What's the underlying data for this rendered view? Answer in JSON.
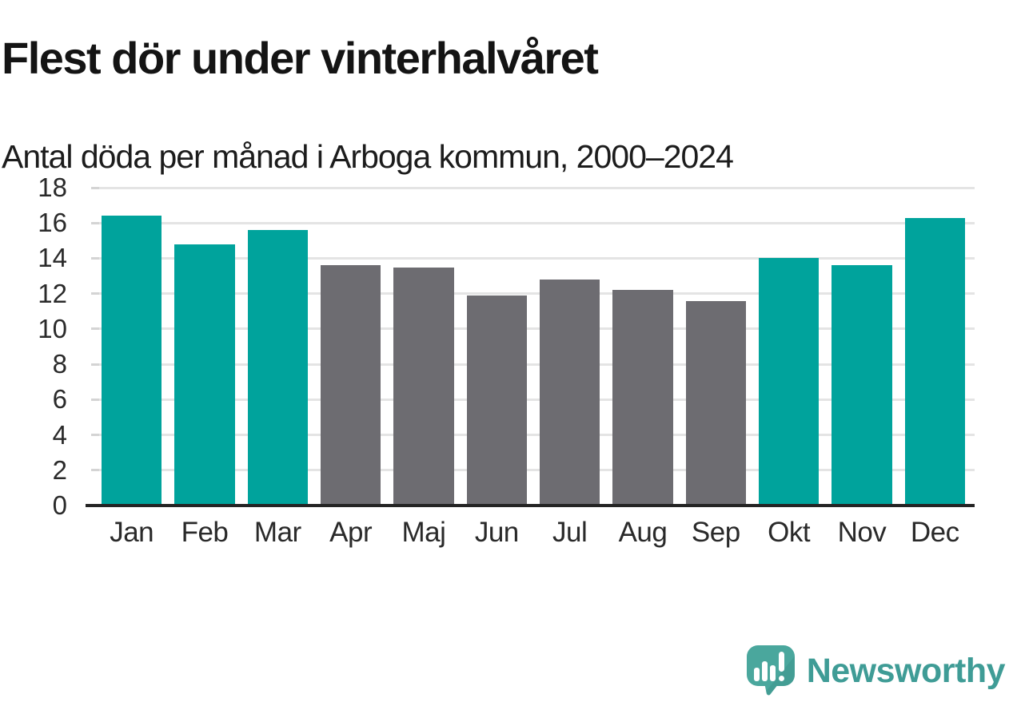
{
  "header": {
    "title": "Flest dör under vinterhalvåret",
    "subtitle": "Antal döda per månad i Arboga kommun, 2000–2024"
  },
  "chart_data": {
    "type": "bar",
    "title": "Flest dör under vinterhalvåret",
    "subtitle": "Antal döda per månad i Arboga kommun, 2000–2024",
    "categories": [
      "Jan",
      "Feb",
      "Mar",
      "Apr",
      "Maj",
      "Jun",
      "Jul",
      "Aug",
      "Sep",
      "Okt",
      "Nov",
      "Dec"
    ],
    "values": [
      16.4,
      14.8,
      15.6,
      13.6,
      13.5,
      11.9,
      12.8,
      12.2,
      11.6,
      14.0,
      13.6,
      16.3
    ],
    "series": [
      {
        "name": "Antal döda per månad",
        "values": [
          16.4,
          14.8,
          15.6,
          13.6,
          13.5,
          11.9,
          12.8,
          12.2,
          11.6,
          14.0,
          13.6,
          16.3
        ]
      }
    ],
    "bar_colors": [
      "#00a39c",
      "#00a39c",
      "#00a39c",
      "#6d6c71",
      "#6d6c71",
      "#6d6c71",
      "#6d6c71",
      "#6d6c71",
      "#6d6c71",
      "#00a39c",
      "#00a39c",
      "#00a39c"
    ],
    "xlabel": "",
    "ylabel": "",
    "ylim": [
      0,
      18
    ],
    "yticks": [
      0,
      2,
      4,
      6,
      8,
      10,
      12,
      14,
      16,
      18
    ],
    "grid": "horizontal",
    "legend": "none",
    "colors": {
      "highlight_teal": "#00a39c",
      "muted_gray": "#6d6c71",
      "gridline": "#e4e4e4",
      "axis_line": "#242424",
      "tick_text": "#2a2a2a"
    }
  },
  "footer": {
    "brand": "Newsworthy",
    "brand_color": "#3f9c96",
    "logo_icon": "newsworthy-bubble-barchart-icon",
    "logo_colors": {
      "bubble": "#4aa79d",
      "bubble_shade": "#3e968c",
      "glyphs": "#ffffff"
    }
  }
}
